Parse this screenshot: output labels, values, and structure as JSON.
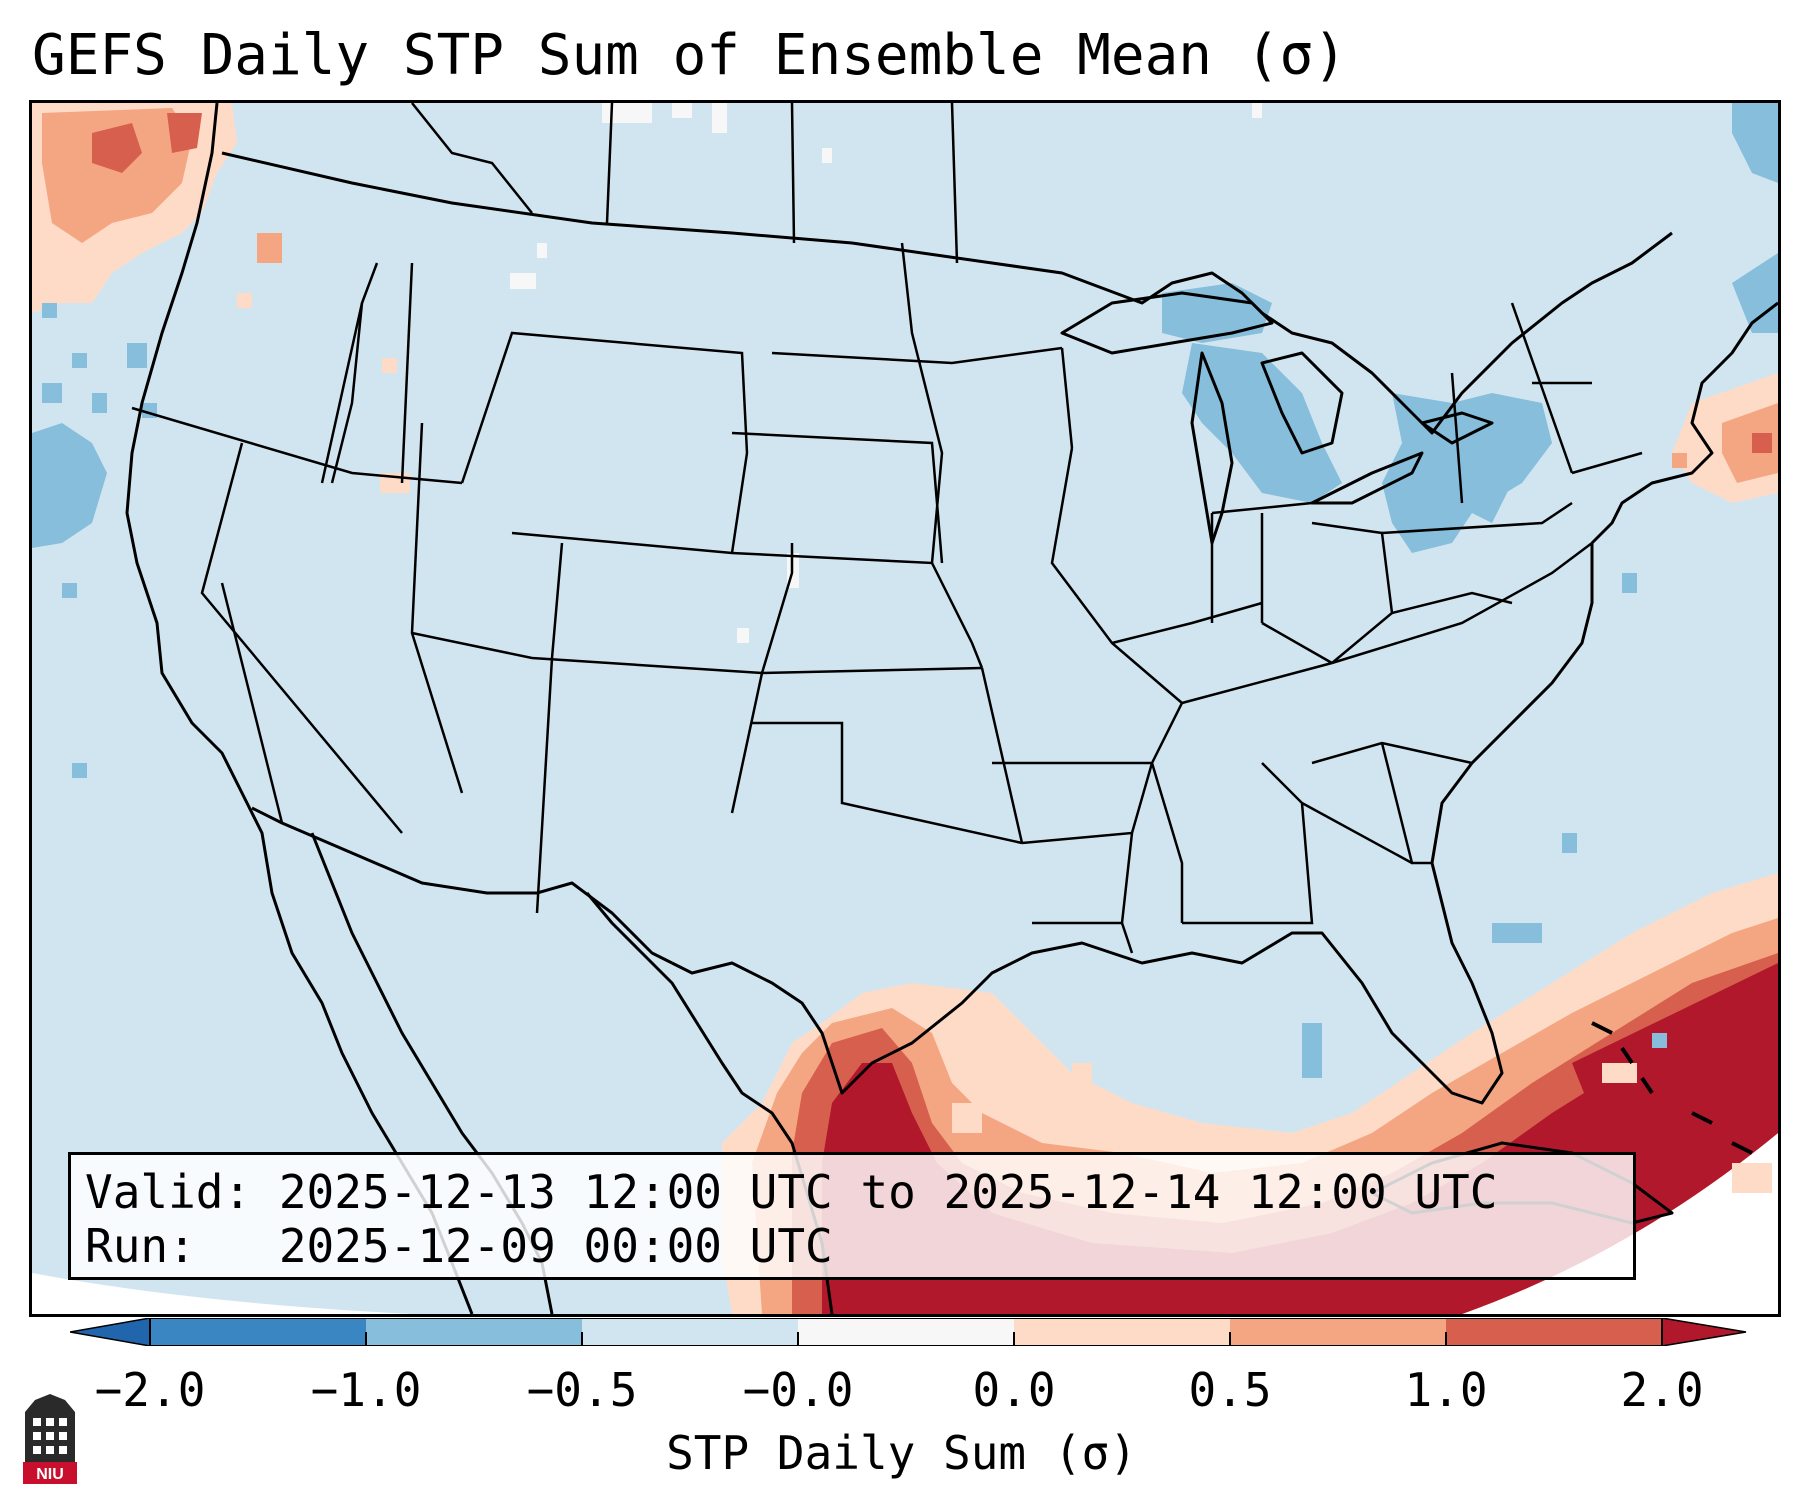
{
  "title": "GEFS Daily STP Sum of Ensemble Mean (σ)",
  "info": {
    "valid": "Valid: 2025-12-13 12:00 UTC to 2025-12-14 12:00 UTC",
    "run": "Run:   2025-12-09 00:00 UTC"
  },
  "colorbar": {
    "label": "STP Daily Sum (σ)",
    "ticks": [
      "−2.0",
      "−1.0",
      "−0.5",
      "−0.0",
      "0.0",
      "0.5",
      "1.0",
      "2.0"
    ],
    "bins": [
      {
        "range": "-2.0 to -1.0",
        "color": "#3a86c2"
      },
      {
        "range": "-1.0 to -0.5",
        "color": "#86bedc"
      },
      {
        "range": "-0.5 to -0.0",
        "color": "#d1e5f0"
      },
      {
        "range": "-0.0 to 0.0",
        "color": "#f7f7f7"
      },
      {
        "range": "0.0 to 0.5",
        "color": "#fddbc7"
      },
      {
        "range": "0.5 to 1.0",
        "color": "#f4a582"
      },
      {
        "range": "1.0 to 2.0",
        "color": "#d6604d"
      }
    ],
    "under_color": "#2166ac",
    "over_color": "#b2182b"
  },
  "colors": {
    "background_field": "#d1e5f0",
    "negative_moderate": "#86bedc",
    "positive_light": "#fddbc7",
    "positive_moderate": "#f4a582",
    "positive_strong": "#d6604d",
    "positive_extreme": "#b2182b",
    "outline": "#000000"
  },
  "logo": {
    "text": "NIU"
  }
}
